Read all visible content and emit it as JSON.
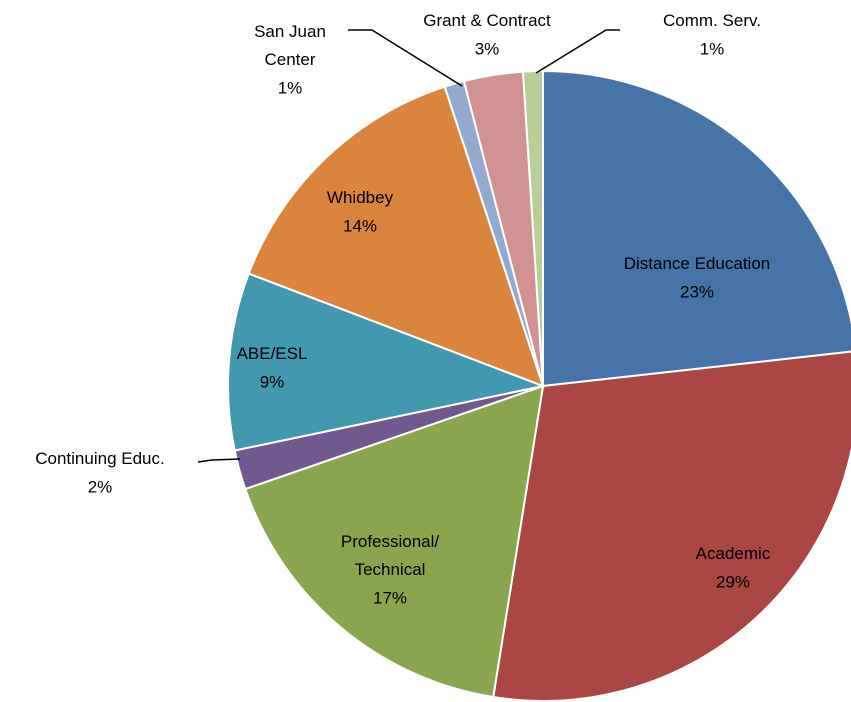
{
  "chart_data": {
    "type": "pie",
    "categories": [
      "Distance Education",
      "Academic",
      "Professional/\nTechnical",
      "Continuing Educ.",
      "ABE/ESL",
      "Whidbey",
      "San Juan\nCenter",
      "Grant & Contract",
      "Comm. Serv."
    ],
    "values": [
      23,
      29,
      17,
      2,
      9,
      14,
      1,
      3,
      1
    ],
    "value_labels": [
      "23%",
      "29%",
      "17%",
      "2%",
      "9%",
      "14%",
      "1%",
      "3%",
      "1%"
    ],
    "colors": [
      "#4673a8",
      "#aa4644",
      "#89a54e",
      "#71588f",
      "#4198af",
      "#db843d",
      "#93a9cf",
      "#d19392",
      "#b9cd96"
    ]
  }
}
